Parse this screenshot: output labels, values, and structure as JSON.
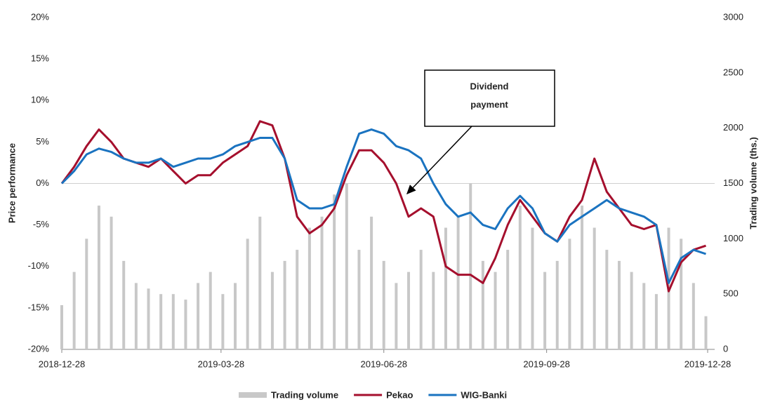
{
  "chart_data": {
    "type": "bar+line",
    "ylabel": "Price performance",
    "y2label": "Trading volume (ths.)",
    "annotation": [
      "Dividend",
      "payment"
    ],
    "xlim": [
      "2018-12-28",
      "2019-12-28"
    ],
    "xticks": [
      "2018-12-28",
      "2019-03-28",
      "2019-06-28",
      "2019-09-28",
      "2019-12-28"
    ],
    "ylim": [
      -20,
      20
    ],
    "yticks": [
      {
        "value": -20,
        "label": "-20%"
      },
      {
        "value": -15,
        "label": "-15%"
      },
      {
        "value": -10,
        "label": "-10%"
      },
      {
        "value": -5,
        "label": "-5%"
      },
      {
        "value": 0,
        "label": "0%"
      },
      {
        "value": 5,
        "label": "5%"
      },
      {
        "value": 10,
        "label": "10%"
      },
      {
        "value": 15,
        "label": "15%"
      },
      {
        "value": 20,
        "label": "20%"
      }
    ],
    "y2lim": [
      0,
      3000
    ],
    "y2ticks": [
      0,
      500,
      1000,
      1500,
      2000,
      2500,
      3000
    ],
    "x": [
      "2018-12-28",
      "2019-01-04",
      "2019-01-11",
      "2019-01-18",
      "2019-01-25",
      "2019-02-01",
      "2019-02-08",
      "2019-02-15",
      "2019-02-22",
      "2019-03-01",
      "2019-03-08",
      "2019-03-15",
      "2019-03-22",
      "2019-03-29",
      "2019-04-05",
      "2019-04-12",
      "2019-04-19",
      "2019-04-26",
      "2019-05-03",
      "2019-05-10",
      "2019-05-17",
      "2019-05-24",
      "2019-05-31",
      "2019-06-07",
      "2019-06-14",
      "2019-06-21",
      "2019-06-28",
      "2019-07-05",
      "2019-07-12",
      "2019-07-19",
      "2019-07-26",
      "2019-08-02",
      "2019-08-09",
      "2019-08-16",
      "2019-08-23",
      "2019-08-30",
      "2019-09-06",
      "2019-09-13",
      "2019-09-20",
      "2019-09-27",
      "2019-10-04",
      "2019-10-11",
      "2019-10-18",
      "2019-10-25",
      "2019-11-01",
      "2019-11-08",
      "2019-11-15",
      "2019-11-22",
      "2019-11-29",
      "2019-12-06",
      "2019-12-13",
      "2019-12-20",
      "2019-12-27"
    ],
    "series": [
      {
        "name": "Trading volume",
        "type": "bar",
        "axis": "y2",
        "color": "#c8c8c8",
        "values": [
          400,
          700,
          1000,
          1300,
          1200,
          800,
          600,
          550,
          500,
          500,
          450,
          600,
          700,
          500,
          600,
          1000,
          1200,
          700,
          800,
          900,
          1100,
          1200,
          1400,
          1500,
          900,
          1200,
          800,
          600,
          700,
          900,
          700,
          1100,
          1200,
          1500,
          800,
          700,
          900,
          1300,
          1100,
          700,
          800,
          1000,
          1300,
          1100,
          900,
          800,
          700,
          600,
          500,
          1100,
          1000,
          600,
          300
        ]
      },
      {
        "name": "Pekao",
        "type": "line",
        "color": "#a50f2d",
        "values": [
          0,
          2,
          4.5,
          6.5,
          5,
          3,
          2.5,
          2,
          3,
          1.5,
          0,
          1,
          1,
          2.5,
          3.5,
          4.5,
          7.5,
          7,
          3,
          -4,
          -6,
          -5,
          -3,
          1,
          4,
          4,
          2.5,
          0,
          -4,
          -3,
          -4,
          -10,
          -11,
          -11,
          -12,
          -9,
          -5,
          -2,
          -4,
          -6,
          -7,
          -4,
          -2,
          3,
          -1,
          -3,
          -5,
          -5.5,
          -5,
          -13,
          -9.5,
          -8,
          -7.5
        ]
      },
      {
        "name": "WIG-Banki",
        "type": "line",
        "color": "#1a73c0",
        "values": [
          0,
          1.5,
          3.5,
          4.2,
          3.8,
          3,
          2.5,
          2.5,
          3,
          2,
          2.5,
          3,
          3,
          3.5,
          4.5,
          5,
          5.5,
          5.5,
          3,
          -2,
          -3,
          -3,
          -2.5,
          2,
          6,
          6.5,
          6,
          4.5,
          4,
          3,
          0,
          -2.5,
          -4,
          -3.5,
          -5,
          -5.5,
          -3,
          -1.5,
          -3,
          -6,
          -7,
          -5,
          -4,
          -3,
          -2,
          -3,
          -3.5,
          -4,
          -5,
          -12,
          -9,
          -8,
          -8.5
        ]
      }
    ]
  }
}
